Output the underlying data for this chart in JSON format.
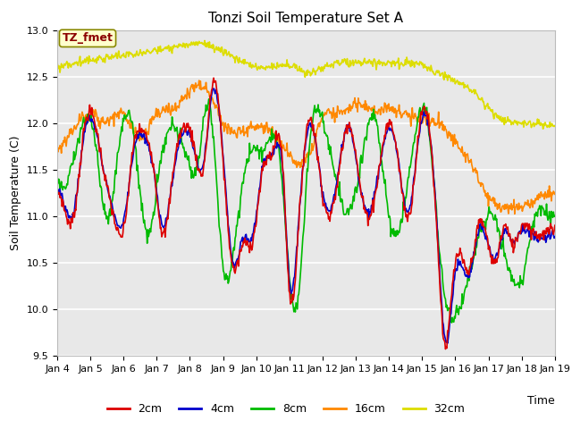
{
  "title": "Tonzi Soil Temperature Set A",
  "xlabel": "Time",
  "ylabel": "Soil Temperature (C)",
  "ylim": [
    9.5,
    13.0
  ],
  "annotation_text": "TZ_fmet",
  "annotation_color": "#8B0000",
  "annotation_bg": "#FFFFCC",
  "annotation_border": "#999900",
  "xtick_labels": [
    "Jan 4",
    "Jan 5",
    "Jan 6",
    "Jan 7",
    "Jan 8",
    "Jan 9",
    "Jan 10",
    "Jan 11",
    "Jan 12",
    "Jan 13",
    "Jan 14",
    "Jan 15",
    "Jan 16",
    "Jan 17",
    "Jan 18",
    "Jan 19"
  ],
  "series_colors": {
    "2cm": "#DD0000",
    "4cm": "#0000CC",
    "8cm": "#00BB00",
    "16cm": "#FF8800",
    "32cm": "#DDDD00"
  },
  "legend_colors": [
    "#DD0000",
    "#0000CC",
    "#00BB00",
    "#FF8800",
    "#DDDD00"
  ],
  "legend_labels": [
    "2cm",
    "4cm",
    "8cm",
    "16cm",
    "32cm"
  ]
}
